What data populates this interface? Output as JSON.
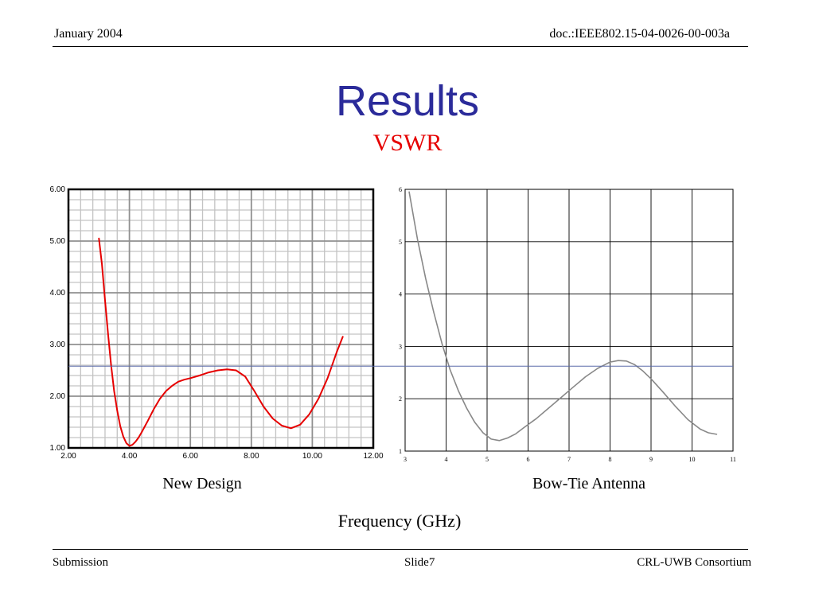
{
  "header": {
    "date": "January 2004",
    "doc_id": "doc.:IEEE802.15-04-0026-00-003a"
  },
  "title": "Results",
  "subtitle": "VSWR",
  "captions": {
    "left": "New Design",
    "right": "Bow-Tie Antenna",
    "x_axis": "Frequency (GHz)"
  },
  "footer": {
    "left": "Submission",
    "center": "Slide7",
    "right": "CRL-UWB Consortium"
  },
  "colors": {
    "title": "#2b2b9a",
    "subtitle": "#e60000",
    "new_design_curve": "#e60000",
    "bowtie_curve": "#888888",
    "reference_line": "#5a6aa8"
  },
  "chart_data": [
    {
      "type": "line",
      "title": "",
      "xlabel": "",
      "ylabel": "",
      "xlim": [
        2,
        12
      ],
      "ylim": [
        1,
        6
      ],
      "xticks": [
        "2.00",
        "4.00",
        "6.00",
        "8.00",
        "10.00",
        "12.00"
      ],
      "yticks": [
        "1.00",
        "2.00",
        "3.00",
        "4.00",
        "5.00",
        "6.00"
      ],
      "grid": true,
      "series": [
        {
          "x": [
            3.0,
            3.1,
            3.2,
            3.3,
            3.4,
            3.5,
            3.6,
            3.7,
            3.8,
            3.9,
            4.0,
            4.1,
            4.2,
            4.3,
            4.4,
            4.6,
            4.8,
            5.0,
            5.2,
            5.4,
            5.6,
            5.8,
            6.0,
            6.3,
            6.6,
            6.9,
            7.2,
            7.5,
            7.8,
            8.1,
            8.4,
            8.7,
            9.0,
            9.3,
            9.6,
            9.9,
            10.2,
            10.5,
            10.8,
            11.0
          ],
          "y": [
            5.05,
            4.55,
            3.85,
            3.2,
            2.6,
            2.1,
            1.72,
            1.42,
            1.22,
            1.09,
            1.04,
            1.06,
            1.12,
            1.2,
            1.3,
            1.52,
            1.75,
            1.95,
            2.1,
            2.2,
            2.28,
            2.32,
            2.35,
            2.4,
            2.46,
            2.5,
            2.52,
            2.5,
            2.38,
            2.1,
            1.8,
            1.57,
            1.43,
            1.38,
            1.45,
            1.65,
            1.95,
            2.35,
            2.85,
            3.15
          ]
        }
      ]
    },
    {
      "type": "line",
      "title": "",
      "xlabel": "",
      "ylabel": "",
      "xlim": [
        3,
        11
      ],
      "ylim": [
        1,
        6
      ],
      "xticks": [
        "3",
        "4",
        "5",
        "6",
        "7",
        "8",
        "9",
        "10",
        "11"
      ],
      "yticks": [
        "1",
        "2",
        "3",
        "4",
        "5",
        "6"
      ],
      "grid": true,
      "series": [
        {
          "x": [
            3.1,
            3.3,
            3.5,
            3.7,
            3.9,
            4.1,
            4.3,
            4.5,
            4.7,
            4.9,
            5.1,
            5.3,
            5.5,
            5.7,
            5.9,
            6.2,
            6.5,
            6.8,
            7.1,
            7.4,
            7.7,
            8.0,
            8.2,
            8.4,
            8.6,
            8.8,
            9.0,
            9.3,
            9.6,
            9.9,
            10.2,
            10.4,
            10.6
          ],
          "y": [
            5.95,
            5.05,
            4.3,
            3.65,
            3.05,
            2.55,
            2.15,
            1.82,
            1.55,
            1.35,
            1.23,
            1.2,
            1.25,
            1.33,
            1.45,
            1.62,
            1.82,
            2.02,
            2.22,
            2.42,
            2.58,
            2.7,
            2.73,
            2.72,
            2.65,
            2.53,
            2.38,
            2.12,
            1.85,
            1.6,
            1.42,
            1.35,
            1.32
          ]
        }
      ]
    }
  ],
  "reference_line": {
    "vswr": 2.58
  }
}
